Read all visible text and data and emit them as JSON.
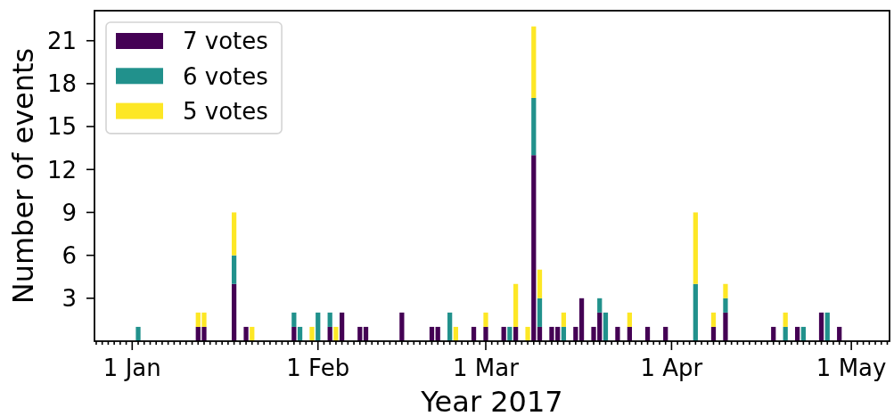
{
  "chart_data": {
    "type": "bar",
    "stacked": true,
    "xlabel": "Year 2017",
    "ylabel": "Number of events",
    "legend": "top left",
    "x": [
      "2017-01-02",
      "2017-01-12",
      "2017-01-13",
      "2017-01-18",
      "2017-01-20",
      "2017-01-21",
      "2017-01-28",
      "2017-01-29",
      "2017-01-31",
      "2017-02-01",
      "2017-02-03",
      "2017-02-04",
      "2017-02-05",
      "2017-02-08",
      "2017-02-09",
      "2017-02-15",
      "2017-02-20",
      "2017-02-21",
      "2017-02-23",
      "2017-02-24",
      "2017-02-27",
      "2017-03-01",
      "2017-03-04",
      "2017-03-05",
      "2017-03-06",
      "2017-03-08",
      "2017-03-09",
      "2017-03-10",
      "2017-03-12",
      "2017-03-13",
      "2017-03-14",
      "2017-03-16",
      "2017-03-17",
      "2017-03-19",
      "2017-03-20",
      "2017-03-21",
      "2017-03-23",
      "2017-03-25",
      "2017-03-28",
      "2017-03-31",
      "2017-04-05",
      "2017-04-08",
      "2017-04-10",
      "2017-04-18",
      "2017-04-20",
      "2017-04-22",
      "2017-04-23",
      "2017-04-26",
      "2017-04-27",
      "2017-04-29"
    ],
    "series": [
      {
        "name": "7 votes",
        "color": "#440154",
        "values": [
          0,
          1,
          1,
          4,
          1,
          0,
          1,
          0,
          0,
          0,
          1,
          0,
          2,
          1,
          1,
          2,
          1,
          1,
          0,
          0,
          1,
          1,
          1,
          0,
          1,
          0,
          13,
          1,
          1,
          1,
          0,
          1,
          3,
          1,
          2,
          0,
          1,
          1,
          1,
          1,
          0,
          1,
          2,
          1,
          0,
          1,
          0,
          2,
          0,
          1
        ]
      },
      {
        "name": "6 votes",
        "color": "#21918c",
        "values": [
          1,
          0,
          0,
          2,
          0,
          0,
          1,
          1,
          0,
          2,
          1,
          0,
          0,
          0,
          0,
          0,
          0,
          0,
          2,
          0,
          0,
          0,
          0,
          1,
          0,
          0,
          4,
          2,
          0,
          0,
          1,
          0,
          0,
          0,
          1,
          2,
          0,
          0,
          0,
          0,
          4,
          0,
          1,
          0,
          1,
          0,
          1,
          0,
          2,
          0
        ]
      },
      {
        "name": "5 votes",
        "color": "#fde725",
        "values": [
          0,
          1,
          1,
          3,
          0,
          1,
          0,
          0,
          1,
          0,
          0,
          1,
          0,
          0,
          0,
          0,
          0,
          0,
          0,
          1,
          0,
          1,
          0,
          0,
          3,
          1,
          5,
          2,
          0,
          0,
          1,
          0,
          0,
          0,
          0,
          0,
          0,
          1,
          0,
          0,
          5,
          1,
          1,
          0,
          1,
          0,
          0,
          0,
          0,
          0
        ]
      }
    ],
    "ylim": [
      0,
      23.1
    ],
    "yticks": [
      3,
      6,
      9,
      12,
      15,
      18,
      21
    ],
    "xlim": [
      "2016-12-25T17:00",
      "2017-05-07T09:00"
    ],
    "xticks": [
      {
        "value": "2016-12-26",
        "label": null
      },
      {
        "value": "2016-12-27",
        "label": null
      },
      {
        "value": "2016-12-28",
        "label": null
      },
      {
        "value": "2016-12-29",
        "label": null
      },
      {
        "value": "2016-12-30",
        "label": null
      },
      {
        "value": "2016-12-31",
        "label": null
      },
      {
        "value": "2017-01-01",
        "label": "1 Jan"
      },
      {
        "value": "2017-01-02",
        "label": null
      },
      {
        "value": "2017-01-03",
        "label": null
      },
      {
        "value": "2017-01-04",
        "label": null
      },
      {
        "value": "2017-01-05",
        "label": null
      },
      {
        "value": "2017-01-06",
        "label": null
      },
      {
        "value": "2017-01-07",
        "label": null
      },
      {
        "value": "2017-01-08",
        "label": null
      },
      {
        "value": "2017-01-09",
        "label": null
      },
      {
        "value": "2017-01-10",
        "label": null
      },
      {
        "value": "2017-01-11",
        "label": null
      },
      {
        "value": "2017-01-12",
        "label": null
      },
      {
        "value": "2017-01-13",
        "label": null
      },
      {
        "value": "2017-01-14",
        "label": null
      },
      {
        "value": "2017-01-15",
        "label": null
      },
      {
        "value": "2017-01-16",
        "label": null
      },
      {
        "value": "2017-01-17",
        "label": null
      },
      {
        "value": "2017-01-18",
        "label": null
      },
      {
        "value": "2017-01-19",
        "label": null
      },
      {
        "value": "2017-01-20",
        "label": null
      },
      {
        "value": "2017-01-21",
        "label": null
      },
      {
        "value": "2017-01-22",
        "label": null
      },
      {
        "value": "2017-01-23",
        "label": null
      },
      {
        "value": "2017-01-24",
        "label": null
      },
      {
        "value": "2017-01-25",
        "label": null
      },
      {
        "value": "2017-01-26",
        "label": null
      },
      {
        "value": "2017-01-27",
        "label": null
      },
      {
        "value": "2017-01-28",
        "label": null
      },
      {
        "value": "2017-01-29",
        "label": null
      },
      {
        "value": "2017-01-30",
        "label": null
      },
      {
        "value": "2017-01-31",
        "label": null
      },
      {
        "value": "2017-02-01",
        "label": "1 Feb"
      },
      {
        "value": "2017-02-02",
        "label": null
      },
      {
        "value": "2017-02-03",
        "label": null
      },
      {
        "value": "2017-02-04",
        "label": null
      },
      {
        "value": "2017-02-05",
        "label": null
      },
      {
        "value": "2017-02-06",
        "label": null
      },
      {
        "value": "2017-02-07",
        "label": null
      },
      {
        "value": "2017-02-08",
        "label": null
      },
      {
        "value": "2017-02-09",
        "label": null
      },
      {
        "value": "2017-02-10",
        "label": null
      },
      {
        "value": "2017-02-11",
        "label": null
      },
      {
        "value": "2017-02-12",
        "label": null
      },
      {
        "value": "2017-02-13",
        "label": null
      },
      {
        "value": "2017-02-14",
        "label": null
      },
      {
        "value": "2017-02-15",
        "label": null
      },
      {
        "value": "2017-02-16",
        "label": null
      },
      {
        "value": "2017-02-17",
        "label": null
      },
      {
        "value": "2017-02-18",
        "label": null
      },
      {
        "value": "2017-02-19",
        "label": null
      },
      {
        "value": "2017-02-20",
        "label": null
      },
      {
        "value": "2017-02-21",
        "label": null
      },
      {
        "value": "2017-02-22",
        "label": null
      },
      {
        "value": "2017-02-23",
        "label": null
      },
      {
        "value": "2017-02-24",
        "label": null
      },
      {
        "value": "2017-02-25",
        "label": null
      },
      {
        "value": "2017-02-26",
        "label": null
      },
      {
        "value": "2017-02-27",
        "label": null
      },
      {
        "value": "2017-02-28",
        "label": null
      },
      {
        "value": "2017-03-01",
        "label": "1 Mar"
      },
      {
        "value": "2017-03-02",
        "label": null
      },
      {
        "value": "2017-03-03",
        "label": null
      },
      {
        "value": "2017-03-04",
        "label": null
      },
      {
        "value": "2017-03-05",
        "label": null
      },
      {
        "value": "2017-03-06",
        "label": null
      },
      {
        "value": "2017-03-07",
        "label": null
      },
      {
        "value": "2017-03-08",
        "label": null
      },
      {
        "value": "2017-03-09",
        "label": null
      },
      {
        "value": "2017-03-10",
        "label": null
      },
      {
        "value": "2017-03-11",
        "label": null
      },
      {
        "value": "2017-03-12",
        "label": null
      },
      {
        "value": "2017-03-13",
        "label": null
      },
      {
        "value": "2017-03-14",
        "label": null
      },
      {
        "value": "2017-03-15",
        "label": null
      },
      {
        "value": "2017-03-16",
        "label": null
      },
      {
        "value": "2017-03-17",
        "label": null
      },
      {
        "value": "2017-03-18",
        "label": null
      },
      {
        "value": "2017-03-19",
        "label": null
      },
      {
        "value": "2017-03-20",
        "label": null
      },
      {
        "value": "2017-03-21",
        "label": null
      },
      {
        "value": "2017-03-22",
        "label": null
      },
      {
        "value": "2017-03-23",
        "label": null
      },
      {
        "value": "2017-03-24",
        "label": null
      },
      {
        "value": "2017-03-25",
        "label": null
      },
      {
        "value": "2017-03-26",
        "label": null
      },
      {
        "value": "2017-03-27",
        "label": null
      },
      {
        "value": "2017-03-28",
        "label": null
      },
      {
        "value": "2017-03-29",
        "label": null
      },
      {
        "value": "2017-03-30",
        "label": null
      },
      {
        "value": "2017-03-31",
        "label": null
      },
      {
        "value": "2017-04-01",
        "label": "1 Apr"
      },
      {
        "value": "2017-04-02",
        "label": null
      },
      {
        "value": "2017-04-03",
        "label": null
      },
      {
        "value": "2017-04-04",
        "label": null
      },
      {
        "value": "2017-04-05",
        "label": null
      },
      {
        "value": "2017-04-06",
        "label": null
      },
      {
        "value": "2017-04-07",
        "label": null
      },
      {
        "value": "2017-04-08",
        "label": null
      },
      {
        "value": "2017-04-09",
        "label": null
      },
      {
        "value": "2017-04-10",
        "label": null
      },
      {
        "value": "2017-04-11",
        "label": null
      },
      {
        "value": "2017-04-12",
        "label": null
      },
      {
        "value": "2017-04-13",
        "label": null
      },
      {
        "value": "2017-04-14",
        "label": null
      },
      {
        "value": "2017-04-15",
        "label": null
      },
      {
        "value": "2017-04-16",
        "label": null
      },
      {
        "value": "2017-04-17",
        "label": null
      },
      {
        "value": "2017-04-18",
        "label": null
      },
      {
        "value": "2017-04-19",
        "label": null
      },
      {
        "value": "2017-04-20",
        "label": null
      },
      {
        "value": "2017-04-21",
        "label": null
      },
      {
        "value": "2017-04-22",
        "label": null
      },
      {
        "value": "2017-04-23",
        "label": null
      },
      {
        "value": "2017-04-24",
        "label": null
      },
      {
        "value": "2017-04-25",
        "label": null
      },
      {
        "value": "2017-04-26",
        "label": null
      },
      {
        "value": "2017-04-27",
        "label": null
      },
      {
        "value": "2017-04-28",
        "label": null
      },
      {
        "value": "2017-04-29",
        "label": null
      },
      {
        "value": "2017-04-30",
        "label": null
      },
      {
        "value": "2017-05-01",
        "label": "1 May"
      },
      {
        "value": "2017-05-02",
        "label": null
      },
      {
        "value": "2017-05-03",
        "label": null
      },
      {
        "value": "2017-05-04",
        "label": null
      },
      {
        "value": "2017-05-05",
        "label": null
      },
      {
        "value": "2017-05-06",
        "label": null
      },
      {
        "value": "2017-05-07",
        "label": null
      }
    ]
  }
}
